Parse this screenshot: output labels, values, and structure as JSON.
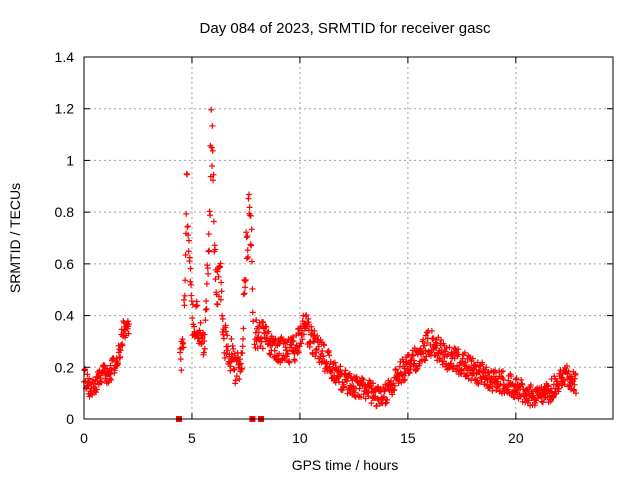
{
  "chart_data": {
    "type": "scatter",
    "title": "Day 084 of 2023, SRMTID for receiver gasc",
    "xlabel": "GPS time / hours",
    "ylabel": "SRMTID / TECUs",
    "xlim": [
      0,
      24.5
    ],
    "ylim": [
      0,
      1.4
    ],
    "xticks": [
      0,
      5,
      10,
      15,
      20
    ],
    "yticks": [
      0,
      0.2,
      0.4,
      0.6,
      0.8,
      1,
      1.2,
      1.4
    ],
    "xtick_labels": [
      "0",
      "5",
      "10",
      "15",
      "20"
    ],
    "ytick_labels": [
      "0",
      "0.2",
      "0.4",
      "0.6",
      "0.8",
      "1",
      "1.2",
      "1.4"
    ],
    "grid": true,
    "marker": "plus",
    "color": "#ff0000",
    "marker_square_x": [
      4.4,
      7.8,
      8.2
    ],
    "series": [
      {
        "name": "SRMTID",
        "segments": [
          {
            "t": [
              0.0,
              0.3,
              0.6,
              0.9,
              1.2,
              1.5,
              1.8,
              2.0,
              2.1
            ],
            "v": [
              0.17,
              0.11,
              0.14,
              0.17,
              0.18,
              0.22,
              0.33,
              0.38,
              0.32
            ],
            "noise": 0.05
          },
          {
            "t": [
              4.45,
              4.6,
              4.7,
              4.75,
              4.85,
              5.0,
              5.2,
              5.4,
              5.6,
              5.8,
              5.9,
              6.0,
              6.1,
              6.3,
              6.5,
              6.8,
              7.0,
              7.3,
              7.5,
              7.65,
              7.75,
              7.85
            ],
            "v": [
              0.22,
              0.3,
              0.6,
              0.95,
              0.7,
              0.36,
              0.4,
              0.32,
              0.3,
              0.75,
              1.15,
              0.85,
              0.5,
              0.55,
              0.3,
              0.25,
              0.2,
              0.22,
              0.62,
              0.78,
              0.72,
              0.3
            ],
            "noise": 0.08
          },
          {
            "t": [
              7.9,
              8.3,
              8.8,
              9.3,
              9.8,
              10.2,
              10.6,
              11.0,
              11.5,
              12.0,
              12.5,
              13.0,
              13.5,
              14.0,
              14.5,
              15.0,
              15.5,
              16.0,
              16.5,
              17.0,
              17.5,
              18.0,
              18.5,
              19.0,
              19.5,
              20.0,
              20.5,
              21.0,
              21.5,
              22.0,
              22.4,
              22.8
            ],
            "v": [
              0.33,
              0.32,
              0.28,
              0.26,
              0.27,
              0.36,
              0.3,
              0.25,
              0.2,
              0.15,
              0.13,
              0.12,
              0.09,
              0.1,
              0.17,
              0.2,
              0.24,
              0.3,
              0.26,
              0.23,
              0.22,
              0.19,
              0.17,
              0.15,
              0.14,
              0.12,
              0.1,
              0.08,
              0.1,
              0.14,
              0.17,
              0.14
            ],
            "noise": 0.06
          }
        ]
      }
    ]
  }
}
